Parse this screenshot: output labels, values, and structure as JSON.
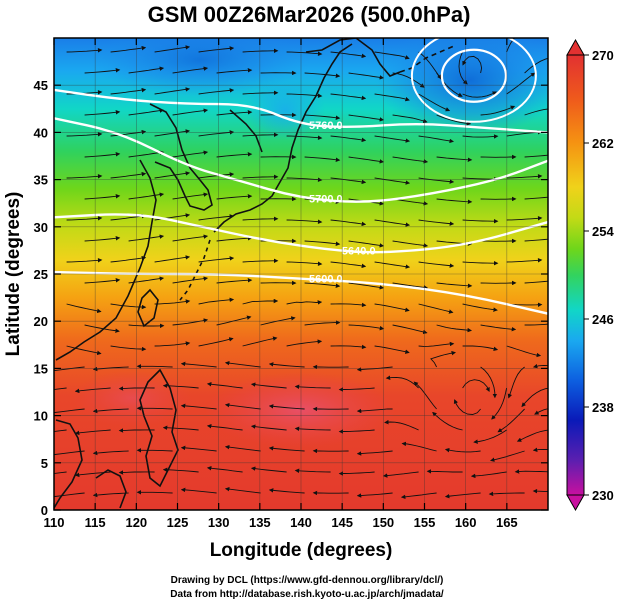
{
  "chart_data": {
    "type": "heatmap",
    "title": "GSM 00Z26Mar2026 (500.0hPa)",
    "xlabel": "Longitude (degrees)",
    "ylabel": "Latitude  (degrees)",
    "xlim": [
      110,
      170
    ],
    "ylim": [
      0,
      50
    ],
    "x_ticks": [
      "110",
      "115",
      "120",
      "125",
      "130",
      "135",
      "140",
      "145",
      "150",
      "155",
      "160",
      "165"
    ],
    "y_ticks": [
      "0",
      "5",
      "10",
      "15",
      "20",
      "25",
      "30",
      "35",
      "40",
      "45"
    ],
    "variable": "500 hPa temperature (K) with wind streamlines",
    "colorbar": {
      "min": 230,
      "max": 270,
      "tick_labels": [
        "230",
        "238",
        "246",
        "254",
        "262",
        "270"
      ],
      "colors": [
        "#c8109f",
        "#5a1fb0",
        "#0a1ab8",
        "#0d5fe0",
        "#1aa8f0",
        "#11d6c7",
        "#33d35e",
        "#6fd61a",
        "#c3da16",
        "#f0d21a",
        "#f59312",
        "#ef5a1c",
        "#e23131"
      ]
    },
    "contours": [
      {
        "label": "5600.0",
        "lon": [
          110,
          120,
          130,
          140,
          150,
          160,
          170
        ],
        "lat": [
          25.2,
          25.0,
          25.0,
          24.5,
          24.0,
          22.8,
          20.8
        ]
      },
      {
        "label": "5640.0",
        "lon": [
          110,
          120,
          128,
          136,
          144,
          150,
          160,
          170
        ],
        "lat": [
          31.0,
          31.5,
          30.0,
          28.5,
          27.5,
          27.2,
          28.0,
          30.5
        ]
      },
      {
        "label": "5700.0",
        "lon": [
          110,
          118,
          126,
          132,
          140,
          148,
          156,
          164,
          170
        ],
        "lat": [
          41.5,
          40.0,
          36.5,
          35.0,
          33.0,
          32.5,
          33.5,
          35.0,
          37.0
        ]
      },
      {
        "label": "5760.0",
        "lon": [
          110,
          118,
          126,
          134,
          140,
          146,
          154,
          162,
          170
        ],
        "lat": [
          44.5,
          43.5,
          43.0,
          43.0,
          40.8,
          40.5,
          41.0,
          40.5,
          40.0
        ]
      }
    ],
    "features": {
      "warm_core_lon": 138,
      "warm_core_lat": 12,
      "warm_core_value": 268,
      "cold_low_lon": 161,
      "cold_low_lat": 46,
      "cold_low_value": 244,
      "vortex_lon": 161,
      "vortex_lat": 11
    }
  },
  "credits": {
    "drawing": "Drawing by DCL (https://www.gfd-dennou.org/library/dcl/)",
    "data": "Data from http://database.rish.kyoto-u.ac.jp/arch/jmadata/"
  }
}
